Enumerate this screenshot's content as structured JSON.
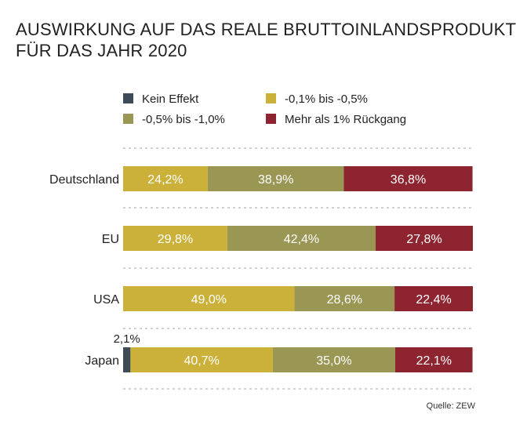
{
  "title": {
    "line1": "AUSWIRKUNG AUF DAS REALE BRUTTOINLANDSPRODUKT",
    "line2": "FÜR DAS JAHR 2020"
  },
  "source": "Quelle: ZEW",
  "colors": {
    "kein_effekt": "#3d4a57",
    "minus_01_05": "#cbb13a",
    "minus_05_10": "#9a9654",
    "mehr_als_1": "#8e2430",
    "divider": "#b8b8b8"
  },
  "chart_data": {
    "type": "bar",
    "orientation": "horizontal",
    "stacked": true,
    "normalized": true,
    "title": "AUSWIRKUNG AUF DAS REALE BRUTTOINLANDSPRODUKT FÜR DAS JAHR 2020",
    "categories": [
      "Deutschland",
      "EU",
      "USA",
      "Japan"
    ],
    "series": [
      {
        "name": "Kein Effekt",
        "values": [
          0,
          0,
          0,
          2.1
        ],
        "labels": [
          "",
          "",
          "",
          "2,1%"
        ],
        "color": "#3d4a57"
      },
      {
        "name": "-0,1% bis -0,5%",
        "values": [
          24.2,
          29.8,
          49.0,
          40.7
        ],
        "labels": [
          "24,2%",
          "29,8%",
          "49,0%",
          "40,7%"
        ],
        "color": "#cbb13a"
      },
      {
        "name": "-0,5% bis -1,0%",
        "values": [
          38.9,
          42.4,
          28.6,
          35.0
        ],
        "labels": [
          "38,9%",
          "42,4%",
          "28,6%",
          "35,0%"
        ],
        "color": "#9a9654"
      },
      {
        "name": "Mehr als 1% Rückgang",
        "values": [
          36.8,
          27.8,
          22.4,
          22.1
        ],
        "labels": [
          "36,8%",
          "27,8%",
          "22,4%",
          "22,1%"
        ],
        "color": "#8e2430"
      }
    ],
    "legend_position": "top",
    "grid": false,
    "xlim": [
      0,
      100
    ],
    "source": "Quelle: ZEW"
  }
}
